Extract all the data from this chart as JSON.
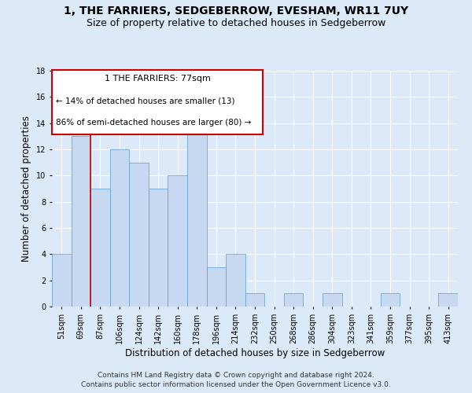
{
  "title": "1, THE FARRIERS, SEDGEBERROW, EVESHAM, WR11 7UY",
  "subtitle": "Size of property relative to detached houses in Sedgeberrow",
  "xlabel": "Distribution of detached houses by size in Sedgeberrow",
  "ylabel": "Number of detached properties",
  "categories": [
    "51sqm",
    "69sqm",
    "87sqm",
    "106sqm",
    "124sqm",
    "142sqm",
    "160sqm",
    "178sqm",
    "196sqm",
    "214sqm",
    "232sqm",
    "250sqm",
    "268sqm",
    "286sqm",
    "304sqm",
    "323sqm",
    "341sqm",
    "359sqm",
    "377sqm",
    "395sqm",
    "413sqm"
  ],
  "values": [
    4,
    13,
    9,
    12,
    11,
    9,
    10,
    14,
    3,
    4,
    1,
    0,
    1,
    0,
    1,
    0,
    0,
    1,
    0,
    0,
    1
  ],
  "bar_color": "#c6d9f0",
  "bar_edge_color": "#5b9bd5",
  "annotation_title": "1 THE FARRIERS: 77sqm",
  "annotation_line1": "← 14% of detached houses are smaller (13)",
  "annotation_line2": "86% of semi-detached houses are larger (80) →",
  "annotation_box_color": "#ffffff",
  "annotation_box_edge_color": "#cc0000",
  "red_line_color": "#cc0000",
  "ylim": [
    0,
    18
  ],
  "yticks": [
    0,
    2,
    4,
    6,
    8,
    10,
    12,
    14,
    16,
    18
  ],
  "footer1": "Contains HM Land Registry data © Crown copyright and database right 2024.",
  "footer2": "Contains public sector information licensed under the Open Government Licence v3.0.",
  "bg_color": "#dce9f8",
  "plot_bg_color": "#dce9f8",
  "title_fontsize": 10,
  "subtitle_fontsize": 9,
  "axis_label_fontsize": 8.5,
  "tick_fontsize": 7,
  "annotation_fontsize": 8,
  "footer_fontsize": 6.5
}
